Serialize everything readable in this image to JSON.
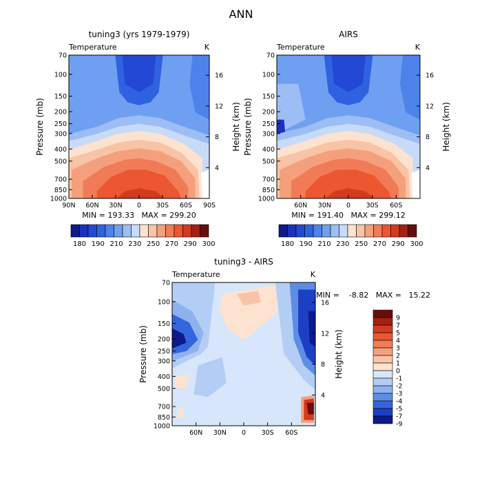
{
  "page": {
    "title": "ANN"
  },
  "chart_data": [
    {
      "id": "panel1",
      "type": "heatmap",
      "title": "tuning3 (yrs 1979-1979)",
      "variable_label": "Temperature",
      "units_label": "K",
      "xlabel": "",
      "ylabel": "Pressure (mb)",
      "y2label": "Height (km)",
      "x_ticks": [
        "90N",
        "60N",
        "30N",
        "0",
        "30S",
        "60S",
        "90S"
      ],
      "y_ticks": [
        "70",
        "100",
        "150",
        "200",
        "250",
        "300",
        "400",
        "500",
        "700",
        "850",
        "1000"
      ],
      "y2_ticks": [
        "4",
        "8",
        "12",
        "16"
      ],
      "stats_text": "MIN = 193.33   MAX = 299.20",
      "min": 193.33,
      "max": 299.2,
      "colorbar_labels": [
        "180",
        "190",
        "210",
        "230",
        "250",
        "270",
        "290",
        "300"
      ]
    },
    {
      "id": "panel2",
      "type": "heatmap",
      "title": "AIRS",
      "variable_label": "Temperature",
      "units_label": "K",
      "xlabel": "",
      "ylabel": "Pressure (mb)",
      "y2label": "Height (km)",
      "x_ticks": [
        "60N",
        "30N",
        "0",
        "30S",
        "60S"
      ],
      "y_ticks": [
        "70",
        "100",
        "150",
        "200",
        "250",
        "300",
        "400",
        "500",
        "700",
        "850",
        "1000"
      ],
      "y2_ticks": [
        "4",
        "8",
        "12",
        "16"
      ],
      "stats_text": "MIN = 191.40   MAX = 299.12",
      "min": 191.4,
      "max": 299.12,
      "colorbar_labels": [
        "180",
        "190",
        "210",
        "230",
        "250",
        "270",
        "290",
        "300"
      ]
    },
    {
      "id": "panel3",
      "type": "heatmap",
      "title": "tuning3 - AIRS",
      "variable_label": "Temperature",
      "units_label": "K",
      "xlabel": "",
      "ylabel": "Pressure (mb)",
      "y2label": "Height (km)",
      "x_ticks": [
        "60N",
        "30N",
        "0",
        "30S",
        "60S"
      ],
      "y_ticks": [
        "70",
        "100",
        "150",
        "200",
        "250",
        "300",
        "400",
        "500",
        "700",
        "850",
        "1000"
      ],
      "y2_ticks": [
        "4",
        "8",
        "12",
        "16"
      ],
      "stats_text": "MIN =    -8.82   MAX =   15.22",
      "min": -8.82,
      "max": 15.22,
      "colorbar_labels": [
        "9",
        "7",
        "5",
        "4",
        "3",
        "2",
        "1",
        "0",
        "-1",
        "-2",
        "-3",
        "-4",
        "-5",
        "-7",
        "-9"
      ]
    }
  ],
  "colors": {
    "abs_palette": [
      "#0c1a8a",
      "#1d2fbe",
      "#2348d4",
      "#2f62e0",
      "#4c82ea",
      "#6f9ff0",
      "#9dbdf5",
      "#c7dbf9",
      "#fde3cf",
      "#f9c3a5",
      "#f5a07d",
      "#f17b56",
      "#ec5630",
      "#d33a1e",
      "#a51f12",
      "#6a0d0a"
    ],
    "diff_palette": [
      "#6a0d0a",
      "#a51f12",
      "#d33a1e",
      "#ec5630",
      "#f17b56",
      "#f5a07d",
      "#f9c3a5",
      "#fde3cf",
      "#d7e6fa",
      "#b3cdf5",
      "#8fb2ef",
      "#5d8ee6",
      "#3366dd",
      "#1d3fc4",
      "#0c1a8a"
    ]
  }
}
